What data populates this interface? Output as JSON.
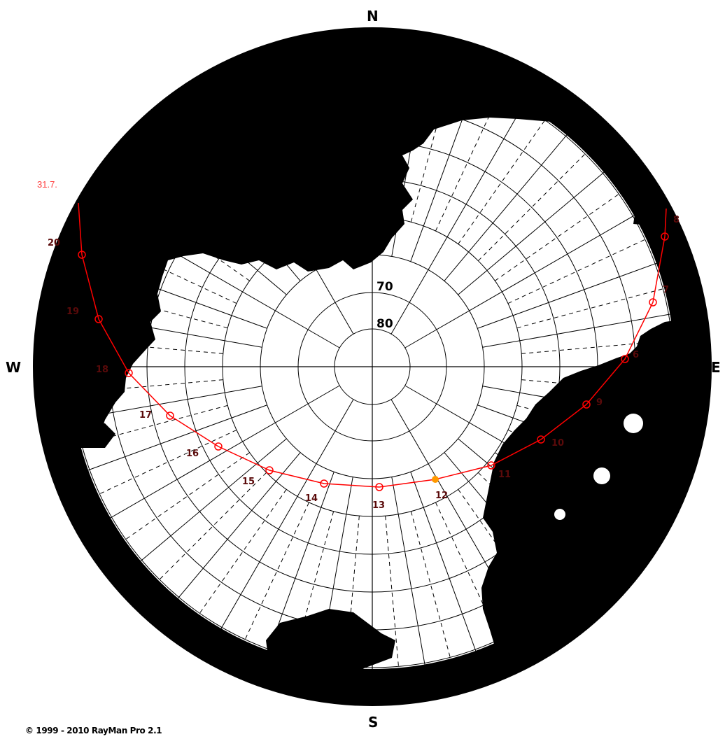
{
  "compass": {
    "north": "N",
    "south": "S",
    "east": "E",
    "west": "W"
  },
  "altitude_labels": [
    "70",
    "80"
  ],
  "sun_path": {
    "date": "31.7.",
    "color": "#ff0000",
    "current_marker_color": "#ff9900",
    "current_hour": 12,
    "hours": [
      {
        "h": 6,
        "label": "6"
      },
      {
        "h": 7,
        "label": "7"
      },
      {
        "h": 8,
        "label": "8"
      },
      {
        "h": 9,
        "label": "9"
      },
      {
        "h": 10,
        "label": "10"
      },
      {
        "h": 11,
        "label": "11"
      },
      {
        "h": 12,
        "label": "12"
      },
      {
        "h": 13,
        "label": "13"
      },
      {
        "h": 14,
        "label": "14"
      },
      {
        "h": 15,
        "label": "15"
      },
      {
        "h": 16,
        "label": "16"
      },
      {
        "h": 17,
        "label": "17"
      },
      {
        "h": 18,
        "label": "18"
      },
      {
        "h": 19,
        "label": "19"
      },
      {
        "h": 20,
        "label": "20"
      }
    ]
  },
  "copyright": "© 1999 - 2010 RayMan Pro 2.1"
}
